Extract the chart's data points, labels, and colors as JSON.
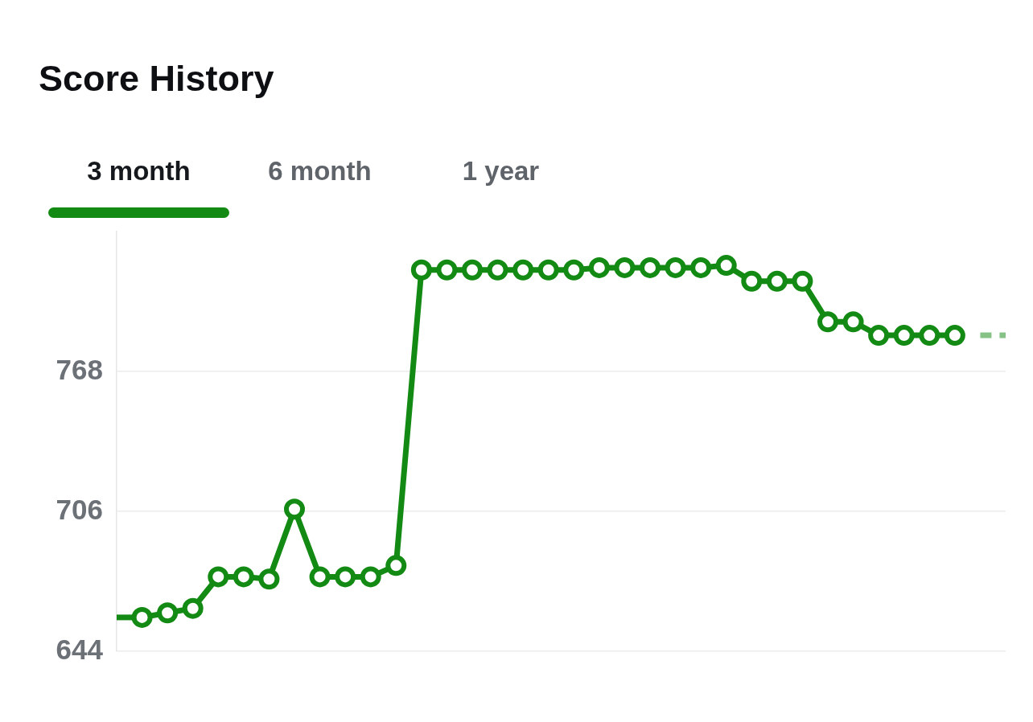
{
  "chart_data": {
    "type": "line",
    "title": "Score History",
    "annotations": [
      "3 month",
      "6 month",
      "1 year"
    ],
    "categories": [
      null,
      null,
      null,
      null,
      null,
      null,
      null,
      null,
      null,
      null,
      null,
      null,
      null,
      null,
      null,
      null,
      null,
      null,
      null,
      null,
      null,
      null,
      null,
      null,
      null,
      null,
      null,
      null,
      null,
      null,
      null,
      null,
      null,
      null,
      null,
      null
    ],
    "ylim": [
      644,
      830
    ],
    "yticks": [
      644,
      706,
      768
    ],
    "grid": "y",
    "tick_labels": "y",
    "series": [
      {
        "color": "#138a13",
        "values": [
          659,
          659,
          null,
          null,
          null,
          null,
          null,
          null,
          null,
          null,
          null,
          null,
          null,
          null,
          null,
          null,
          null,
          null,
          null,
          null,
          null,
          null,
          null,
          null,
          null,
          null,
          null,
          null,
          null,
          null,
          null,
          null,
          null,
          null,
          null,
          null
        ]
      },
      {
        "color": "#138a13",
        "marker": "circle",
        "values": [
          null,
          659,
          661,
          663,
          677,
          677,
          676,
          707,
          677,
          677,
          677,
          682,
          813,
          813,
          813,
          813,
          813,
          813,
          813,
          814,
          814,
          814,
          814,
          814,
          815,
          808,
          808,
          808,
          790,
          790,
          784,
          784,
          784,
          784,
          null,
          null
        ]
      },
      {
        "color": "#86c286",
        "line_style": "dashed",
        "values": [
          null,
          null,
          null,
          null,
          null,
          null,
          null,
          null,
          null,
          null,
          null,
          null,
          null,
          null,
          null,
          null,
          null,
          null,
          null,
          null,
          null,
          null,
          null,
          null,
          null,
          null,
          null,
          null,
          null,
          null,
          null,
          null,
          null,
          null,
          784,
          784
        ]
      }
    ]
  }
}
